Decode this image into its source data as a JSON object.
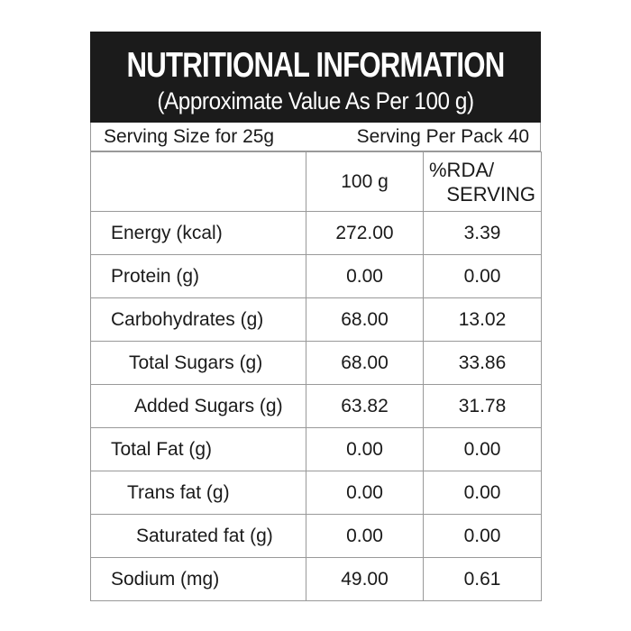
{
  "title": "NUTRITIONAL INFORMATION",
  "subtitle": "(Approximate Value As Per 100 g)",
  "serving_size": "Serving Size for 25g",
  "serving_per_pack": "Serving Per Pack 40",
  "columns": {
    "per100": "100 g",
    "rda_line1": "%RDA/",
    "rda_line2": "SERVING"
  },
  "rows": [
    {
      "name": "Energy (kcal)",
      "per100": "272.00",
      "rda": "3.39"
    },
    {
      "name": "Protein (g)",
      "per100": "0.00",
      "rda": "0.00"
    },
    {
      "name": "Carbohydrates (g)",
      "per100": "68.00",
      "rda": "13.02"
    },
    {
      "name": "Total Sugars (g)",
      "per100": "68.00",
      "rda": "33.86"
    },
    {
      "name": "Added Sugars (g)",
      "per100": "63.82",
      "rda": "31.78"
    },
    {
      "name": "Total Fat (g)",
      "per100": "0.00",
      "rda": "0.00"
    },
    {
      "name": "Trans fat (g)",
      "per100": "0.00",
      "rda": "0.00"
    },
    {
      "name": "Saturated fat (g)",
      "per100": "0.00",
      "rda": "0.00"
    },
    {
      "name": "Sodium (mg)",
      "per100": "49.00",
      "rda": "0.61"
    }
  ]
}
